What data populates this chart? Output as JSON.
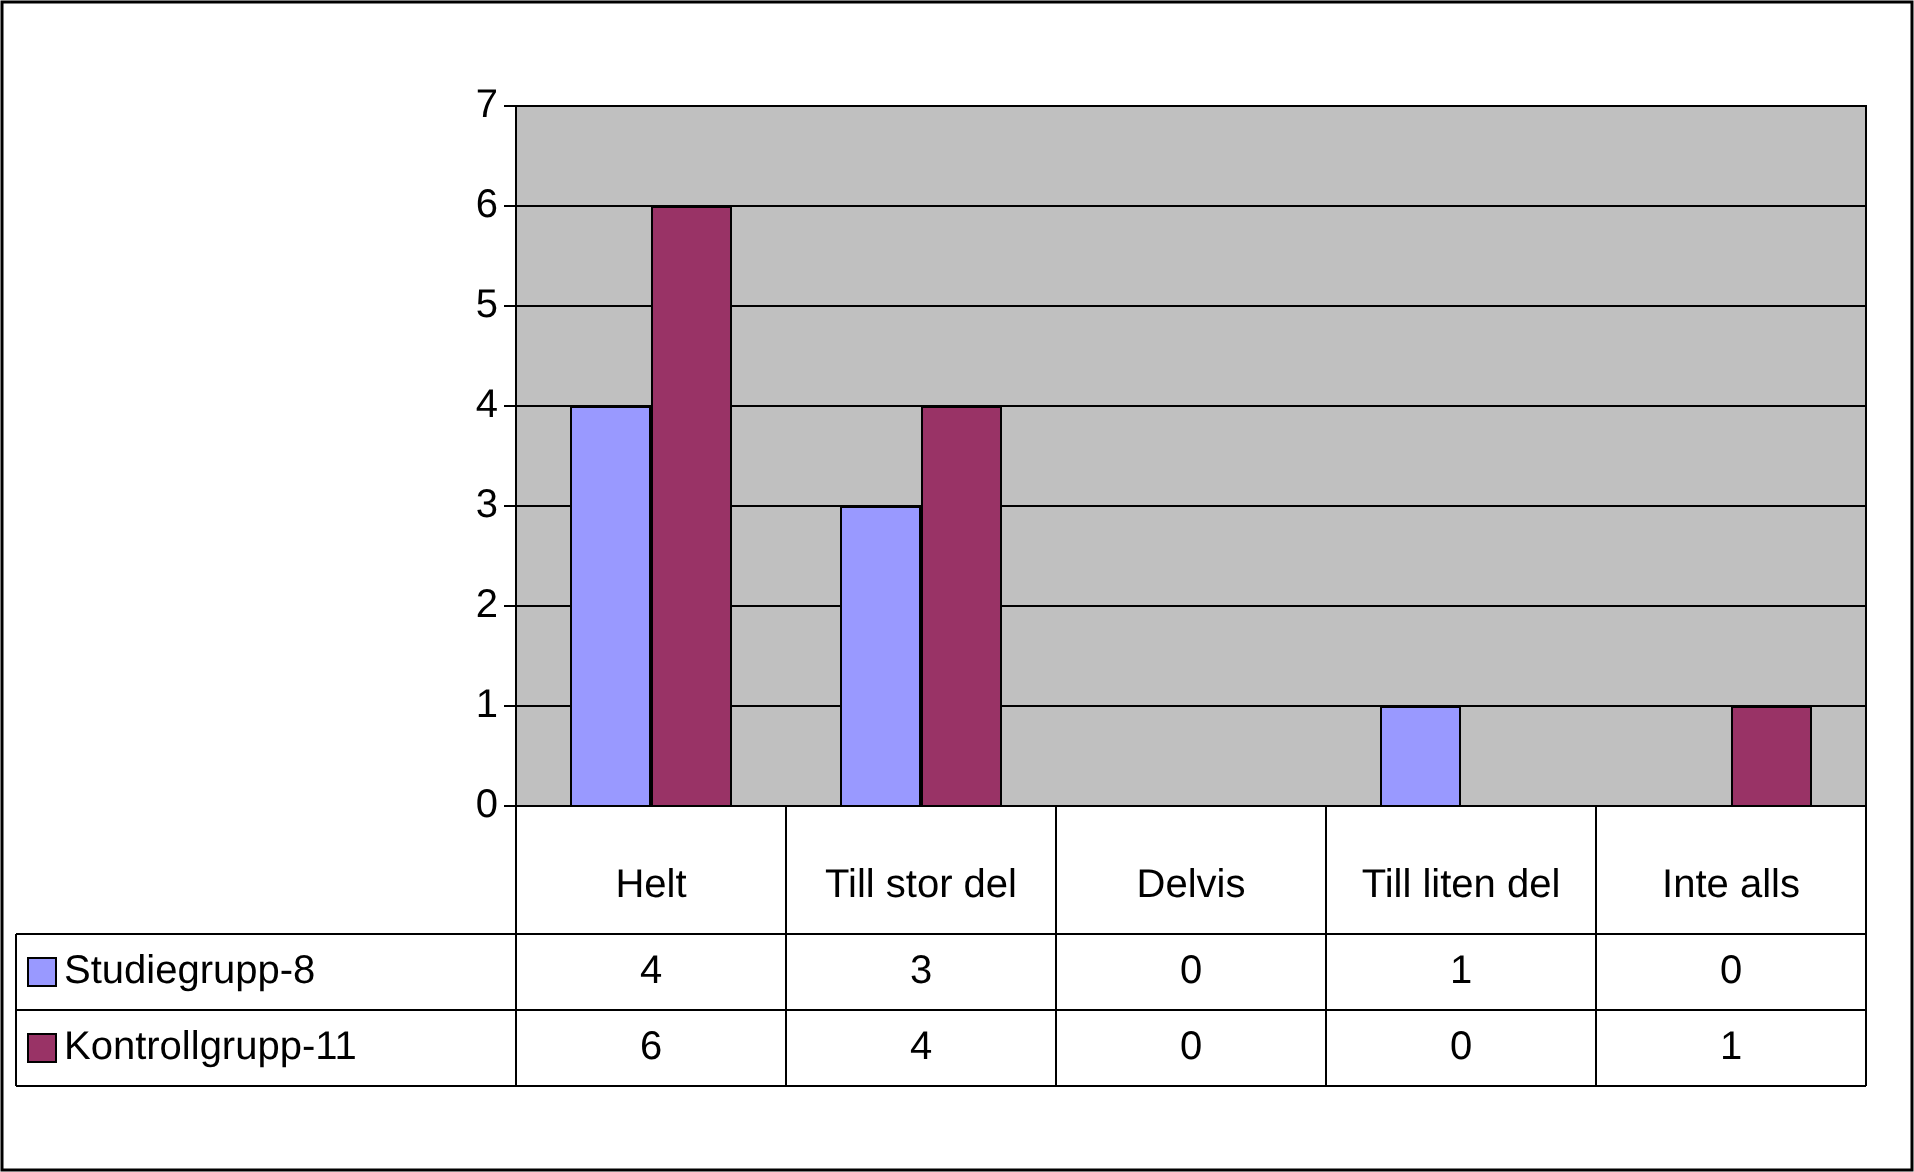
{
  "chart_data": {
    "type": "bar",
    "categories": [
      "Helt",
      "Till stor del",
      "Delvis",
      "Till liten del",
      "Inte alls"
    ],
    "series": [
      {
        "name": "Studiegrupp-8",
        "color": "#9999ff",
        "values": [
          4,
          3,
          0,
          1,
          0
        ]
      },
      {
        "name": "Kontrollgrupp-11",
        "color": "#993366",
        "values": [
          6,
          4,
          0,
          0,
          1
        ]
      }
    ],
    "ylim": [
      0,
      7
    ],
    "yticks": [
      0,
      1,
      2,
      3,
      4,
      5,
      6,
      7
    ],
    "grid": "y",
    "legend": "bottom left",
    "data_labels": true
  }
}
